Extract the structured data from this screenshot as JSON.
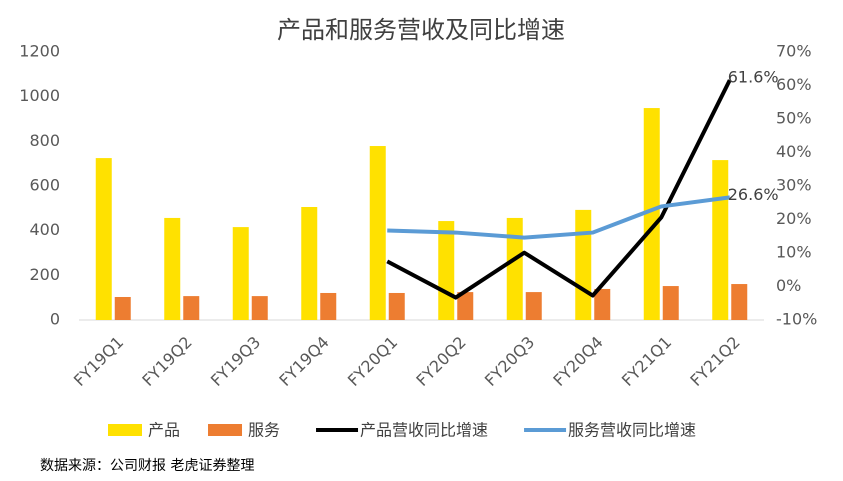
{
  "chart_data": {
    "type": "combo",
    "title": "产品和服务营收及同比增速",
    "categories": [
      "FY19Q1",
      "FY19Q2",
      "FY19Q3",
      "FY19Q4",
      "FY20Q1",
      "FY20Q2",
      "FY20Q3",
      "FY20Q4",
      "FY21Q1",
      "FY21Q2"
    ],
    "series": [
      {
        "name": "产品",
        "type": "bar",
        "color": "#ffe100",
        "values": [
          725,
          457,
          416,
          506,
          779,
          443,
          457,
          493,
          949,
          716
        ]
      },
      {
        "name": "服务",
        "type": "bar",
        "color": "#ed7d31",
        "values": [
          103,
          107,
          107,
          121,
          121,
          125,
          125,
          139,
          152,
          161
        ]
      },
      {
        "name": "产品营收同比增速",
        "type": "line",
        "axis": "y2",
        "color": "#000000",
        "values": [
          null,
          null,
          null,
          null,
          7.5,
          -3.3,
          10.1,
          -2.7,
          20.6,
          61.6
        ],
        "value_labels": [
          null,
          null,
          null,
          null,
          null,
          null,
          null,
          null,
          null,
          "61.6%"
        ]
      },
      {
        "name": "服务营收同比增速",
        "type": "line",
        "axis": "y2",
        "color": "#5b9bd5",
        "values": [
          null,
          null,
          null,
          null,
          16.7,
          16.1,
          14.6,
          16.1,
          23.9,
          26.6
        ],
        "value_labels": [
          null,
          null,
          null,
          null,
          null,
          null,
          null,
          null,
          null,
          "26.6%"
        ]
      }
    ],
    "ylim": [
      0,
      1200
    ],
    "yticks": [
      0,
      200,
      400,
      600,
      800,
      1000,
      1200
    ],
    "y2lim": [
      -10,
      70
    ],
    "y2ticks": [
      {
        "value": -10,
        "label": "-10%"
      },
      {
        "value": 0,
        "label": "0%"
      },
      {
        "value": 10,
        "label": "10%"
      },
      {
        "value": 20,
        "label": "20%"
      },
      {
        "value": 30,
        "label": "30%"
      },
      {
        "value": 40,
        "label": "40%"
      },
      {
        "value": 50,
        "label": "50%"
      },
      {
        "value": 60,
        "label": "60%"
      },
      {
        "value": 70,
        "label": "70%"
      }
    ],
    "grid": false,
    "legend": "bottom",
    "source": "数据来源：公司财报 老虎证券整理"
  }
}
